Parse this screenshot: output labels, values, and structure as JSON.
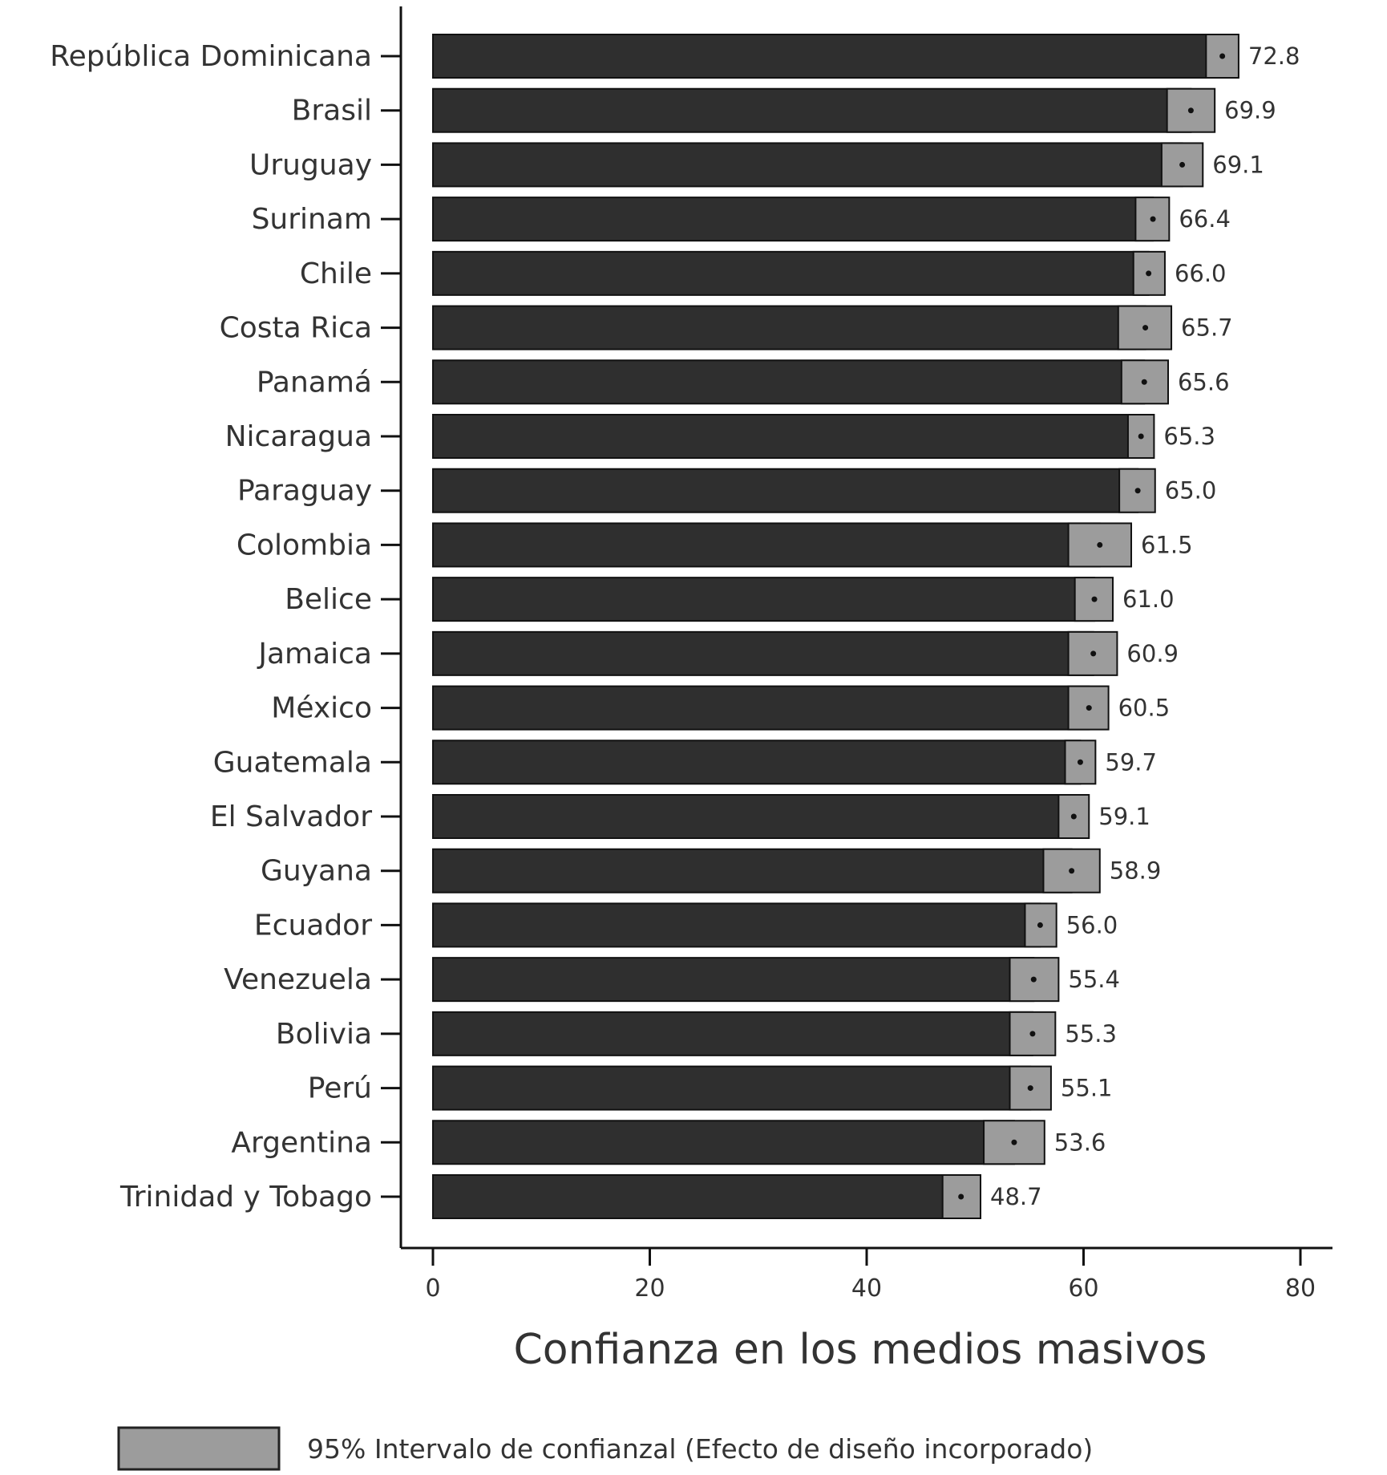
{
  "chart_data": {
    "type": "bar",
    "orientation": "horizontal",
    "categories": [
      "República Dominicana",
      "Brasil",
      "Uruguay",
      "Surinam",
      "Chile",
      "Costa Rica",
      "Panamá",
      "Nicaragua",
      "Paraguay",
      "Colombia",
      "Belice",
      "Jamaica",
      "México",
      "Guatemala",
      "El Salvador",
      "Guyana",
      "Ecuador",
      "Venezuela",
      "Bolivia",
      "Perú",
      "Argentina",
      "Trinidad y Tobago"
    ],
    "values": [
      72.8,
      69.9,
      69.1,
      66.4,
      66.0,
      65.7,
      65.6,
      65.3,
      65.0,
      61.5,
      61.0,
      60.9,
      60.5,
      59.7,
      59.1,
      58.9,
      56.0,
      55.4,
      55.3,
      55.1,
      53.6,
      48.7
    ],
    "value_labels": [
      "72.8",
      "69.9",
      "69.1",
      "66.4",
      "66.0",
      "65.7",
      "65.6",
      "65.3",
      "65.0",
      "61.5",
      "61.0",
      "60.9",
      "60.5",
      "59.7",
      "59.1",
      "58.9",
      "56.0",
      "55.4",
      "55.3",
      "55.1",
      "53.6",
      "48.7"
    ],
    "ci_low": [
      71.3,
      67.7,
      67.2,
      64.8,
      64.6,
      63.2,
      63.5,
      64.1,
      63.3,
      58.6,
      59.2,
      58.6,
      58.6,
      58.3,
      57.7,
      56.3,
      54.6,
      53.2,
      53.2,
      53.2,
      50.8,
      47.0
    ],
    "ci_high": [
      74.3,
      72.1,
      71.0,
      67.9,
      67.5,
      68.1,
      67.8,
      66.5,
      66.6,
      64.4,
      62.7,
      63.1,
      62.3,
      61.1,
      60.5,
      61.5,
      57.5,
      57.7,
      57.4,
      57.0,
      56.4,
      50.5
    ],
    "xlabel": "Confianza en los medios masivos",
    "ylabel": "",
    "xlim": [
      0,
      80
    ],
    "xticks": [
      0,
      20,
      40,
      60,
      80
    ],
    "xtick_labels": [
      "0",
      "20",
      "40",
      "60",
      "80"
    ],
    "grid": false,
    "legend": {
      "placement": "bottom",
      "entries": [
        "95% Intervalo de confianzal (Efecto de diseño incorporado)"
      ]
    },
    "colors": {
      "bar": "#2f2f2f",
      "ci": "#9c9c9c",
      "axis": "#111111"
    }
  }
}
